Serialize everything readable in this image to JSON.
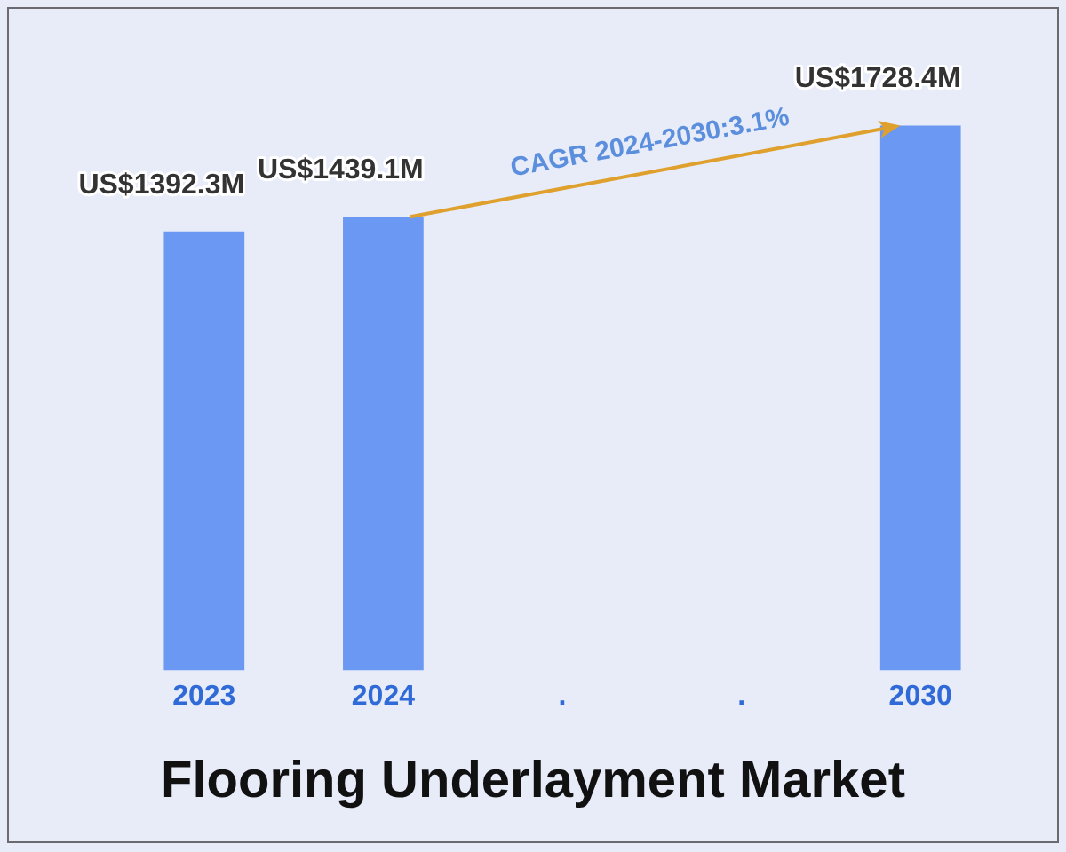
{
  "chart_data": {
    "type": "bar",
    "title": "Flooring Underlayment Market",
    "categories": [
      "2023",
      "2024",
      ".",
      ".",
      "2030"
    ],
    "values": [
      1392300000,
      1439100000,
      null,
      null,
      1728400000
    ],
    "value_labels": [
      "US$1392.3M",
      "US$1439.1M",
      null,
      null,
      "US$1728.4M"
    ],
    "color": "#6b98f2",
    "annotations": [
      "CAGR 2024-2030:3.1%"
    ],
    "grid": false,
    "legend": false,
    "tick_labels": "x"
  }
}
